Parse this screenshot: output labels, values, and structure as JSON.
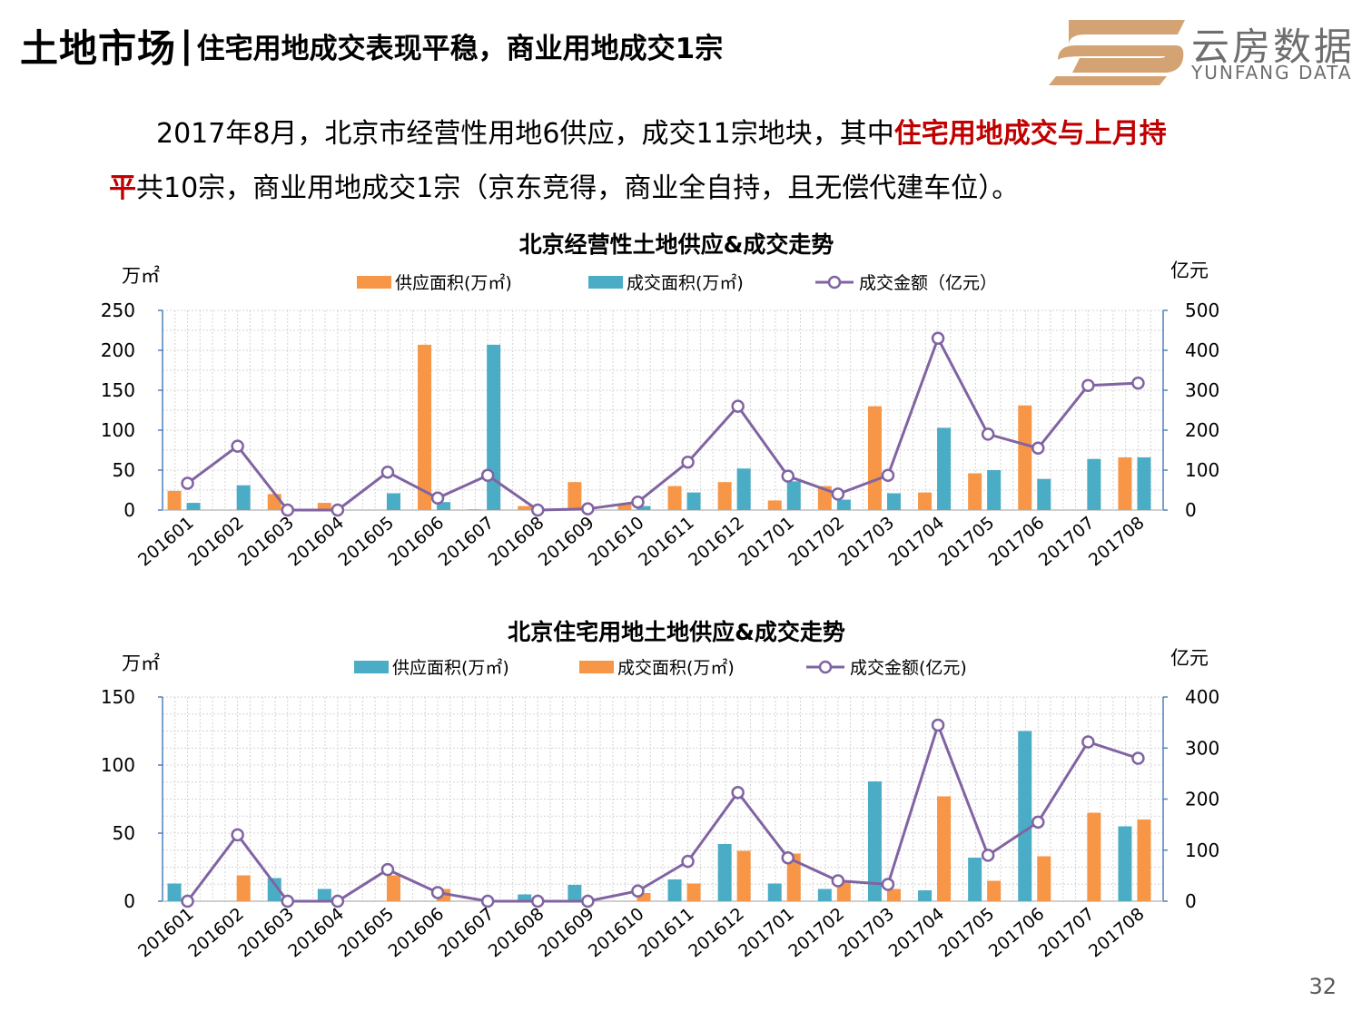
{
  "header": {
    "title_main": "土地市场",
    "separator": "|",
    "title_sub": "住宅用地成交表现平稳，商业用地成交1宗"
  },
  "logo": {
    "name_cn": "云房数据",
    "name_en": "YUNFANG DATA"
  },
  "intro": {
    "part1": "2017年8月，北京市经营性用地6供应，成交11宗地块，其中",
    "highlight1": "住宅用地成交与上月持",
    "highlight2": "平",
    "part2": "共10宗，商业用地成交1宗（京东竞得，商业全自持，且无偿代建车位）。"
  },
  "colors": {
    "orange": "#f79646",
    "teal": "#4bacc6",
    "purple": "#8064a2",
    "highlight": "#c00000"
  },
  "page_number": "32",
  "chart_data": [
    {
      "type": "bar",
      "title": "北京经营性土地供应&成交走势",
      "y_left_label": "万㎡",
      "y_right_label": "亿元",
      "ylim_left": [
        0,
        250
      ],
      "ylim_right": [
        0,
        500
      ],
      "yticks_left": [
        "0",
        "50",
        "100",
        "150",
        "200",
        "250"
      ],
      "yticks_right": [
        "0",
        "100",
        "200",
        "300",
        "400",
        "500"
      ],
      "categories": [
        "201601",
        "201602",
        "201603",
        "201604",
        "201605",
        "201606",
        "201607",
        "201608",
        "201609",
        "201610",
        "201611",
        "201612",
        "201701",
        "201702",
        "201703",
        "201704",
        "201705",
        "201706",
        "201707",
        "201708"
      ],
      "series": [
        {
          "name": "供应面积(万㎡)",
          "type": "bar",
          "axis": "left",
          "color": "#f79646",
          "values": [
            24,
            0,
            20,
            9,
            0,
            207,
            1,
            5,
            35,
            7,
            30,
            35,
            12,
            30,
            130,
            22,
            46,
            131,
            0,
            66
          ]
        },
        {
          "name": "成交面积(万㎡)",
          "type": "bar",
          "axis": "left",
          "color": "#4bacc6",
          "values": [
            9,
            31,
            0,
            0,
            21,
            10,
            207,
            0,
            0,
            5,
            22,
            52,
            36,
            13,
            21,
            103,
            50,
            39,
            64,
            66
          ]
        },
        {
          "name": "成交金额（亿元）",
          "type": "line",
          "axis": "right",
          "color": "#8064a2",
          "values": [
            67,
            160,
            0,
            0,
            95,
            30,
            87,
            0,
            3,
            20,
            120,
            260,
            85,
            40,
            87,
            430,
            190,
            155,
            312,
            318
          ]
        }
      ]
    },
    {
      "type": "bar",
      "title": "北京住宅用地土地供应&成交走势",
      "y_left_label": "万㎡",
      "y_right_label": "亿元",
      "ylim_left": [
        0,
        150
      ],
      "ylim_right": [
        0,
        400
      ],
      "yticks_left": [
        "0",
        "50",
        "100",
        "150"
      ],
      "yticks_right": [
        "0",
        "100",
        "200",
        "300",
        "400"
      ],
      "categories": [
        "201601",
        "201602",
        "201603",
        "201604",
        "201605",
        "201606",
        "201607",
        "201608",
        "201609",
        "201610",
        "201611",
        "201612",
        "201701",
        "201702",
        "201703",
        "201704",
        "201705",
        "201706",
        "201707",
        "201708"
      ],
      "series": [
        {
          "name": "供应面积(万㎡)",
          "type": "bar",
          "axis": "left",
          "color": "#4bacc6",
          "values": [
            13,
            0,
            17,
            9,
            0,
            0,
            0,
            5,
            12,
            0,
            16,
            42,
            13,
            9,
            88,
            8,
            32,
            125,
            0,
            55
          ]
        },
        {
          "name": "成交面积(万㎡)",
          "type": "bar",
          "axis": "left",
          "color": "#f79646",
          "values": [
            0,
            19,
            0,
            0,
            19,
            9,
            0,
            0,
            0,
            6,
            13,
            37,
            35,
            14,
            9,
            77,
            15,
            33,
            65,
            60
          ]
        },
        {
          "name": "成交金额(亿元)",
          "type": "line",
          "axis": "right",
          "color": "#8064a2",
          "values": [
            0,
            130,
            0,
            0,
            62,
            17,
            0,
            0,
            0,
            20,
            78,
            213,
            85,
            40,
            33,
            345,
            90,
            155,
            312,
            280
          ]
        }
      ]
    }
  ]
}
